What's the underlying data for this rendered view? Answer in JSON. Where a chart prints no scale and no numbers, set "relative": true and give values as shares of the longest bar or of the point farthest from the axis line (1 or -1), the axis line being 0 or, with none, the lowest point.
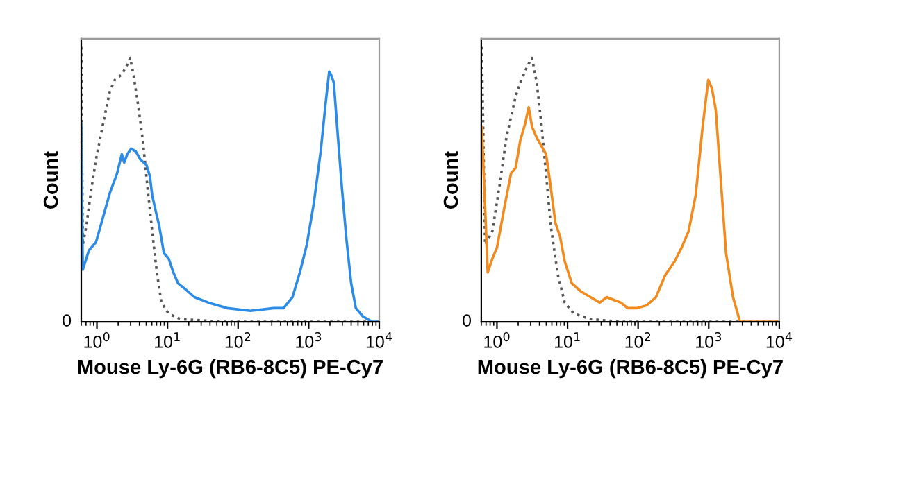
{
  "chart_data": [
    {
      "type": "line",
      "relative": true,
      "log": "x",
      "xlim": [
        0.6,
        10000
      ],
      "annotations": [
        "0"
      ],
      "xticks": [
        {
          "value": 1,
          "label": "10$^{0}$"
        },
        {
          "value": 10,
          "label": "10$^{1}$"
        },
        {
          "value": 100,
          "label": "10$^{2}$"
        },
        {
          "value": 1000,
          "label": "10$^{3}$"
        },
        {
          "value": 10000,
          "label": "10$^{4}$"
        }
      ],
      "xlabel": "Mouse Ly-6G (RB6-8C5) PE-Cy7",
      "ylabel": "Count",
      "series": [
        {
          "color": "#555555",
          "line_style": "dotted",
          "x": [
            0.6,
            0.63,
            0.71,
            0.83,
            0.97,
            1.22,
            1.53,
            1.79,
            2.25,
            2.62,
            2.96,
            3.29,
            3.83,
            4.47,
            5.2,
            6.07,
            7.06,
            8.2,
            10.4,
            15.2,
            70,
            10000
          ],
          "values": [
            1.0,
            0.28,
            0.35,
            0.48,
            0.59,
            0.72,
            0.84,
            0.88,
            0.9,
            0.93,
            0.96,
            0.9,
            0.79,
            0.66,
            0.49,
            0.33,
            0.18,
            0.07,
            0.03,
            0.01,
            0,
            0
          ]
        },
        {
          "color": "#2b8be6",
          "line_style": "solid",
          "x": [
            0.6,
            0.63,
            0.77,
            0.97,
            1.22,
            1.53,
            1.93,
            2.25,
            2.43,
            2.7,
            3.05,
            3.55,
            4.14,
            5.05,
            5.62,
            6.07,
            6.85,
            7.62,
            8.89,
            10.4,
            12.1,
            14.1,
            17.7,
            24,
            38,
            70,
            150,
            320,
            440,
            590,
            750,
            940,
            1180,
            1480,
            1730,
            1950,
            2070,
            2270,
            2530,
            2950,
            3430,
            4000,
            4660,
            5860,
            7950,
            10000
          ],
          "values": [
            0.72,
            0.19,
            0.26,
            0.29,
            0.38,
            0.47,
            0.54,
            0.61,
            0.58,
            0.61,
            0.63,
            0.62,
            0.59,
            0.57,
            0.53,
            0.46,
            0.4,
            0.35,
            0.25,
            0.23,
            0.18,
            0.14,
            0.12,
            0.09,
            0.07,
            0.05,
            0.04,
            0.05,
            0.05,
            0.09,
            0.18,
            0.28,
            0.43,
            0.62,
            0.79,
            0.91,
            0.9,
            0.87,
            0.71,
            0.49,
            0.3,
            0.14,
            0.05,
            0.02,
            0,
            0
          ]
        }
      ]
    },
    {
      "type": "line",
      "relative": true,
      "log": "x",
      "xlim": [
        0.6,
        10000
      ],
      "annotations": [
        "0"
      ],
      "xticks": [
        {
          "value": 1,
          "label": "10$^{0}$"
        },
        {
          "value": 10,
          "label": "10$^{1}$"
        },
        {
          "value": 100,
          "label": "10$^{2}$"
        },
        {
          "value": 1000,
          "label": "10$^{3}$"
        },
        {
          "value": 10000,
          "label": "10$^{4}$"
        }
      ],
      "xlabel": "Mouse Ly-6G (RB6-8C5) PE-Cy7",
      "ylabel": "Count",
      "series": [
        {
          "color": "#555555",
          "line_style": "dotted",
          "x": [
            0.61,
            0.68,
            0.86,
            1.08,
            1.36,
            1.84,
            2.14,
            2.69,
            3.14,
            3.66,
            4.26,
            4.96,
            5.78,
            7.3,
            9.12,
            12.3,
            21.1,
            61,
            10000
          ],
          "values": [
            1.0,
            0.28,
            0.33,
            0.49,
            0.67,
            0.82,
            0.87,
            0.93,
            0.96,
            0.87,
            0.72,
            0.54,
            0.35,
            0.17,
            0.07,
            0.03,
            0.01,
            0,
            0
          ]
        },
        {
          "color": "#f28a1e",
          "line_style": "solid",
          "x": [
            0.61,
            0.74,
            0.86,
            1.0,
            1.26,
            1.58,
            1.84,
            2.14,
            2.5,
            2.82,
            3.14,
            3.66,
            4.26,
            4.96,
            5.78,
            6.73,
            7.84,
            9.12,
            11.5,
            15.6,
            21.1,
            28.6,
            36,
            45,
            57,
            71,
            97,
            132,
            179,
            242,
            329,
            413,
            519,
            653,
            820,
            985,
            1110,
            1260,
            1460,
            1760,
            2210,
            2780,
            10000
          ],
          "values": [
            0.71,
            0.18,
            0.23,
            0.27,
            0.41,
            0.54,
            0.56,
            0.66,
            0.72,
            0.78,
            0.71,
            0.67,
            0.64,
            0.61,
            0.49,
            0.36,
            0.31,
            0.22,
            0.14,
            0.11,
            0.09,
            0.07,
            0.09,
            0.08,
            0.07,
            0.05,
            0.05,
            0.06,
            0.09,
            0.17,
            0.22,
            0.27,
            0.33,
            0.46,
            0.71,
            0.88,
            0.85,
            0.77,
            0.54,
            0.25,
            0.09,
            0,
            0
          ]
        }
      ]
    }
  ]
}
